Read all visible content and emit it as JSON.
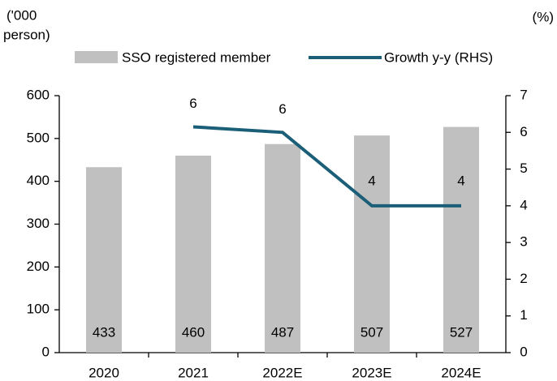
{
  "chart_data": {
    "type": "bar",
    "ylabel": [
      "('000",
      "person)"
    ],
    "y2label": "(%)",
    "categories": [
      "2020",
      "2021",
      "2022E",
      "2023E",
      "2024E"
    ],
    "series": [
      {
        "name": "SSO registered member",
        "type": "bar",
        "color": "#c0c0c0",
        "values": [
          433,
          460,
          487,
          507,
          527
        ]
      },
      {
        "name": "Growth y-y (RHS)",
        "type": "line",
        "axis": "y2",
        "color": "#1b5e78",
        "values": [
          null,
          6.15,
          6.0,
          4.0,
          4.0
        ],
        "value_labels": [
          null,
          "6",
          "6",
          "4",
          "4"
        ]
      }
    ],
    "ylim": [
      0,
      600
    ],
    "yticks": [
      0,
      100,
      200,
      300,
      400,
      500,
      600
    ],
    "y2lim": [
      0,
      7
    ],
    "y2ticks": [
      0,
      1,
      2,
      3,
      4,
      5,
      6,
      7
    ],
    "grid": false
  }
}
